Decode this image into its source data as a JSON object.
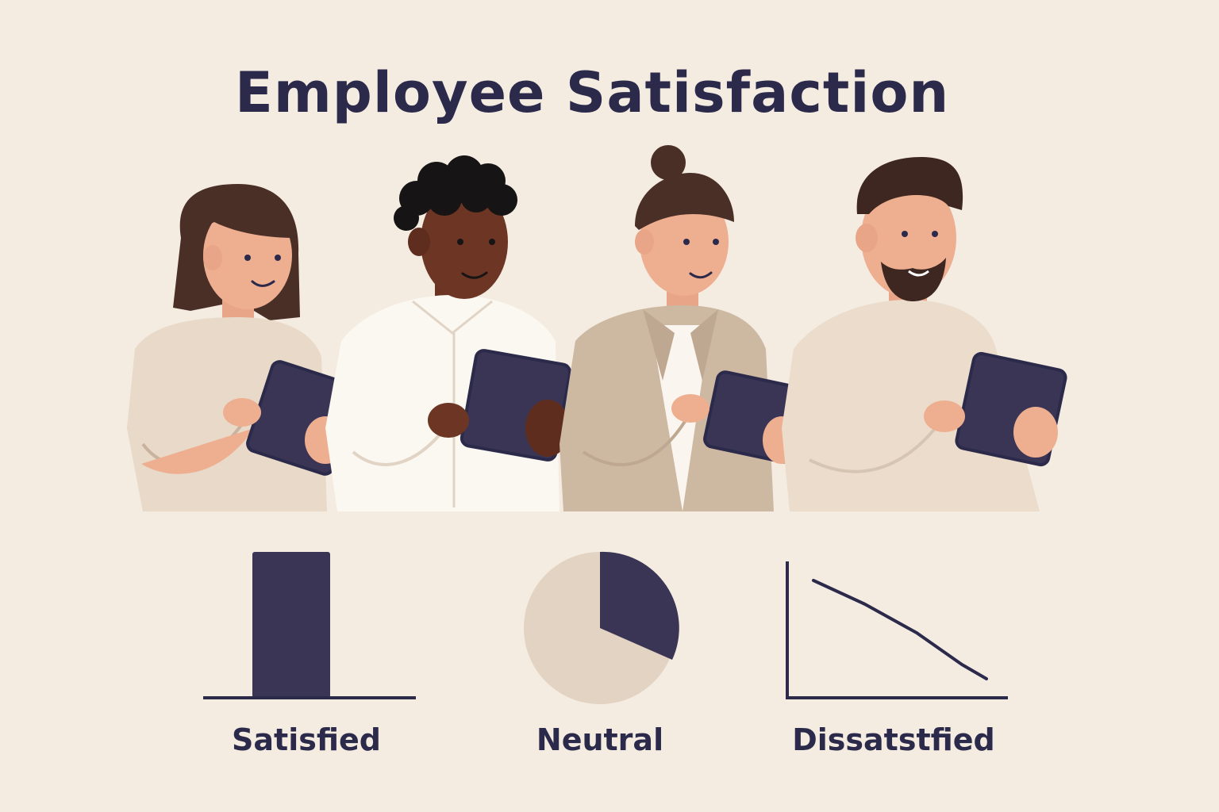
{
  "title": "Employee Satisfaction",
  "labels": {
    "satisfied": "Satisfied",
    "neutral": "Neutral",
    "dissatisfied": "Dissatstfied"
  },
  "colors": {
    "background": "#f4ebe1",
    "navy": "#2b2a4a",
    "beige": "#e3d3c2",
    "tablet": "#3a3555"
  },
  "icons": [
    "bar-chart-icon",
    "pie-chart-icon",
    "line-chart-icon"
  ]
}
